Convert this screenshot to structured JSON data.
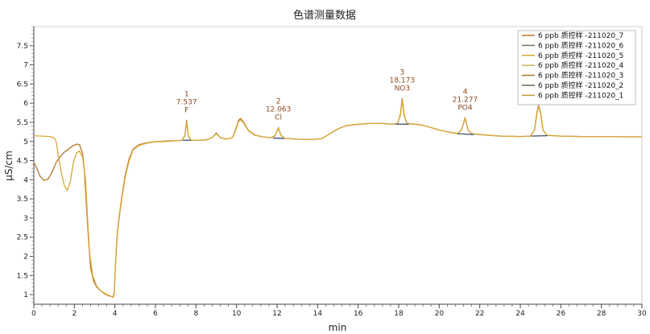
{
  "chart_data": {
    "type": "line",
    "title": "色谱测量数据",
    "xlabel": "min",
    "ylabel": "µS/cm",
    "xlim": [
      0,
      30
    ],
    "ylim": [
      0.75,
      8.0
    ],
    "xticks": [
      0,
      2,
      4,
      6,
      8,
      10,
      12,
      14,
      16,
      18,
      20,
      22,
      24,
      26,
      28,
      30
    ],
    "yticks": [
      1,
      1.5,
      2,
      2.5,
      3,
      3.5,
      4,
      4.5,
      5,
      5.5,
      6,
      6.5,
      7,
      7.5
    ],
    "grid": false,
    "legend_position": "top-right",
    "legend": [
      {
        "label": "6 ppb 质控样 -211020_7",
        "color": "#b8742a"
      },
      {
        "label": "6 ppb 质控样 -211020_6",
        "color": "#6e7f66"
      },
      {
        "label": "6 ppb 质控样 -211020_5",
        "color": "#d8a838"
      },
      {
        "label": "6 ppb 质控样 -211020_4",
        "color": "#c9b25a"
      },
      {
        "label": "6 ppb 质控样 -211020_3",
        "color": "#a8782c"
      },
      {
        "label": "6 ppb 质控样 -211020_2",
        "color": "#5c6e54"
      },
      {
        "label": "6 ppb 质控样 -211020_1",
        "color": "#c6983a"
      }
    ],
    "annotations": [
      {
        "number": "1",
        "time": "7.537",
        "name": "F",
        "x": 7.537,
        "y": 5.55
      },
      {
        "number": "2",
        "time": "12.063",
        "name": "Cl",
        "x": 12.063,
        "y": 5.36
      },
      {
        "number": "3",
        "time": "18.173",
        "name": "NO3",
        "x": 18.173,
        "y": 6.12
      },
      {
        "number": "4",
        "time": "21.277",
        "name": "PO4",
        "x": 21.277,
        "y": 5.62
      }
    ],
    "series": [
      {
        "color": "#b8742a",
        "points": [
          [
            0,
            4.45
          ],
          [
            0.15,
            4.3
          ],
          [
            0.3,
            4.1
          ],
          [
            0.5,
            3.98
          ],
          [
            0.7,
            4.02
          ],
          [
            0.9,
            4.2
          ],
          [
            1.1,
            4.45
          ],
          [
            1.3,
            4.6
          ],
          [
            1.5,
            4.72
          ],
          [
            1.7,
            4.8
          ],
          [
            1.9,
            4.88
          ],
          [
            2.1,
            4.93
          ],
          [
            2.25,
            4.92
          ],
          [
            2.4,
            4.7
          ],
          [
            2.5,
            4.2
          ],
          [
            2.6,
            3.3
          ],
          [
            2.7,
            2.4
          ],
          [
            2.8,
            1.7
          ],
          [
            2.95,
            1.35
          ],
          [
            3.1,
            1.2
          ],
          [
            3.3,
            1.1
          ],
          [
            3.5,
            1.02
          ],
          [
            3.7,
            0.97
          ],
          [
            3.85,
            0.95
          ],
          [
            3.92,
            0.93
          ],
          [
            3.97,
            1.05
          ],
          [
            4.02,
            1.7
          ],
          [
            4.1,
            2.5
          ],
          [
            4.2,
            3.0
          ],
          [
            4.35,
            3.6
          ],
          [
            4.5,
            4.1
          ],
          [
            4.7,
            4.55
          ],
          [
            4.9,
            4.8
          ],
          [
            5.2,
            4.92
          ],
          [
            5.6,
            4.97
          ],
          [
            6.0,
            4.99
          ],
          [
            6.5,
            5.01
          ],
          [
            7.0,
            5.02
          ],
          [
            7.3,
            5.03
          ],
          [
            7.45,
            5.15
          ],
          [
            7.537,
            5.55
          ],
          [
            7.62,
            5.15
          ],
          [
            7.75,
            5.03
          ],
          [
            8.0,
            5.03
          ],
          [
            8.5,
            5.04
          ],
          [
            8.8,
            5.1
          ],
          [
            9.0,
            5.22
          ],
          [
            9.2,
            5.1
          ],
          [
            9.5,
            5.06
          ],
          [
            9.8,
            5.1
          ],
          [
            9.95,
            5.3
          ],
          [
            10.1,
            5.55
          ],
          [
            10.2,
            5.6
          ],
          [
            10.35,
            5.5
          ],
          [
            10.6,
            5.28
          ],
          [
            10.9,
            5.17
          ],
          [
            11.3,
            5.12
          ],
          [
            11.7,
            5.1
          ],
          [
            11.9,
            5.15
          ],
          [
            12.063,
            5.36
          ],
          [
            12.2,
            5.15
          ],
          [
            12.4,
            5.08
          ],
          [
            13.0,
            5.06
          ],
          [
            13.6,
            5.05
          ],
          [
            14.2,
            5.07
          ],
          [
            14.6,
            5.2
          ],
          [
            15.0,
            5.33
          ],
          [
            15.4,
            5.41
          ],
          [
            16.0,
            5.45
          ],
          [
            16.6,
            5.47
          ],
          [
            17.2,
            5.47
          ],
          [
            17.7,
            5.45
          ],
          [
            17.95,
            5.47
          ],
          [
            18.08,
            5.7
          ],
          [
            18.173,
            6.12
          ],
          [
            18.27,
            5.7
          ],
          [
            18.4,
            5.47
          ],
          [
            18.8,
            5.45
          ],
          [
            19.1,
            5.43
          ],
          [
            19.5,
            5.38
          ],
          [
            20.0,
            5.3
          ],
          [
            20.5,
            5.24
          ],
          [
            20.9,
            5.21
          ],
          [
            21.1,
            5.3
          ],
          [
            21.277,
            5.62
          ],
          [
            21.42,
            5.3
          ],
          [
            21.6,
            5.2
          ],
          [
            22.0,
            5.18
          ],
          [
            23.0,
            5.14
          ],
          [
            24.0,
            5.13
          ],
          [
            24.5,
            5.14
          ],
          [
            24.7,
            5.3
          ],
          [
            24.82,
            5.75
          ],
          [
            24.9,
            5.95
          ],
          [
            25.0,
            5.75
          ],
          [
            25.12,
            5.3
          ],
          [
            25.3,
            5.16
          ],
          [
            26.0,
            5.14
          ],
          [
            27.0,
            5.13
          ],
          [
            28.0,
            5.13
          ],
          [
            29.0,
            5.12
          ],
          [
            30,
            5.12
          ]
        ]
      },
      {
        "color": "#d8a838",
        "points": [
          [
            0,
            5.15
          ],
          [
            0.4,
            5.14
          ],
          [
            0.8,
            5.13
          ],
          [
            1.0,
            5.1
          ],
          [
            1.1,
            5.0
          ],
          [
            1.2,
            4.65
          ],
          [
            1.35,
            4.2
          ],
          [
            1.5,
            3.85
          ],
          [
            1.65,
            3.72
          ],
          [
            1.8,
            3.95
          ],
          [
            1.95,
            4.45
          ],
          [
            2.1,
            4.7
          ],
          [
            2.25,
            4.75
          ],
          [
            2.4,
            4.6
          ],
          [
            2.55,
            4.0
          ],
          [
            2.65,
            3.0
          ],
          [
            2.75,
            2.1
          ],
          [
            2.9,
            1.5
          ],
          [
            3.1,
            1.22
          ],
          [
            3.3,
            1.1
          ],
          [
            3.55,
            1.02
          ],
          [
            3.75,
            0.97
          ],
          [
            3.9,
            0.94
          ],
          [
            3.97,
            1.05
          ],
          [
            4.02,
            1.7
          ],
          [
            4.1,
            2.45
          ],
          [
            4.2,
            2.95
          ],
          [
            4.35,
            3.55
          ],
          [
            4.5,
            4.05
          ],
          [
            4.7,
            4.5
          ],
          [
            4.9,
            4.78
          ],
          [
            5.2,
            4.9
          ],
          [
            5.6,
            4.96
          ],
          [
            6.0,
            4.99
          ],
          [
            6.5,
            5.0
          ],
          [
            7.0,
            5.02
          ],
          [
            7.3,
            5.03
          ],
          [
            7.45,
            5.14
          ],
          [
            7.537,
            5.52
          ],
          [
            7.62,
            5.14
          ],
          [
            7.75,
            5.03
          ],
          [
            8.0,
            5.03
          ],
          [
            8.5,
            5.04
          ],
          [
            8.8,
            5.1
          ],
          [
            9.0,
            5.2
          ],
          [
            9.2,
            5.1
          ],
          [
            9.5,
            5.06
          ],
          [
            9.8,
            5.1
          ],
          [
            9.95,
            5.28
          ],
          [
            10.1,
            5.52
          ],
          [
            10.2,
            5.57
          ],
          [
            10.35,
            5.48
          ],
          [
            10.6,
            5.27
          ],
          [
            10.9,
            5.16
          ],
          [
            11.3,
            5.12
          ],
          [
            11.7,
            5.1
          ],
          [
            11.9,
            5.15
          ],
          [
            12.063,
            5.34
          ],
          [
            12.2,
            5.15
          ],
          [
            12.4,
            5.08
          ],
          [
            13.0,
            5.06
          ],
          [
            13.6,
            5.05
          ],
          [
            14.2,
            5.07
          ],
          [
            14.6,
            5.2
          ],
          [
            15.0,
            5.33
          ],
          [
            15.4,
            5.41
          ],
          [
            16.0,
            5.45
          ],
          [
            16.6,
            5.47
          ],
          [
            17.2,
            5.47
          ],
          [
            17.7,
            5.45
          ],
          [
            17.95,
            5.47
          ],
          [
            18.08,
            5.68
          ],
          [
            18.173,
            6.08
          ],
          [
            18.27,
            5.68
          ],
          [
            18.4,
            5.47
          ],
          [
            18.8,
            5.45
          ],
          [
            19.1,
            5.43
          ],
          [
            19.5,
            5.38
          ],
          [
            20.0,
            5.3
          ],
          [
            20.5,
            5.24
          ],
          [
            20.9,
            5.21
          ],
          [
            21.1,
            5.3
          ],
          [
            21.277,
            5.6
          ],
          [
            21.42,
            5.3
          ],
          [
            21.6,
            5.2
          ],
          [
            22.0,
            5.18
          ],
          [
            23.0,
            5.14
          ],
          [
            24.0,
            5.13
          ],
          [
            24.5,
            5.14
          ],
          [
            24.7,
            5.3
          ],
          [
            24.82,
            5.72
          ],
          [
            24.9,
            5.92
          ],
          [
            25.0,
            5.72
          ],
          [
            25.12,
            5.3
          ],
          [
            25.3,
            5.16
          ],
          [
            26.0,
            5.14
          ],
          [
            27.0,
            5.13
          ],
          [
            28.0,
            5.13
          ],
          [
            29.0,
            5.12
          ],
          [
            30,
            5.12
          ]
        ]
      }
    ],
    "baseline_segments": [
      {
        "color": "#4b5a78",
        "points": [
          [
            7.35,
            5.03
          ],
          [
            7.75,
            5.03
          ]
        ]
      },
      {
        "color": "#4b5a78",
        "points": [
          [
            11.8,
            5.09
          ],
          [
            12.35,
            5.08
          ]
        ]
      },
      {
        "color": "#4b5a78",
        "points": [
          [
            17.85,
            5.45
          ],
          [
            18.5,
            5.45
          ]
        ]
      },
      {
        "color": "#4b5a78",
        "points": [
          [
            20.9,
            5.2
          ],
          [
            21.7,
            5.18
          ]
        ]
      },
      {
        "color": "#4b5a78",
        "points": [
          [
            24.55,
            5.14
          ],
          [
            25.35,
            5.15
          ]
        ]
      }
    ]
  }
}
